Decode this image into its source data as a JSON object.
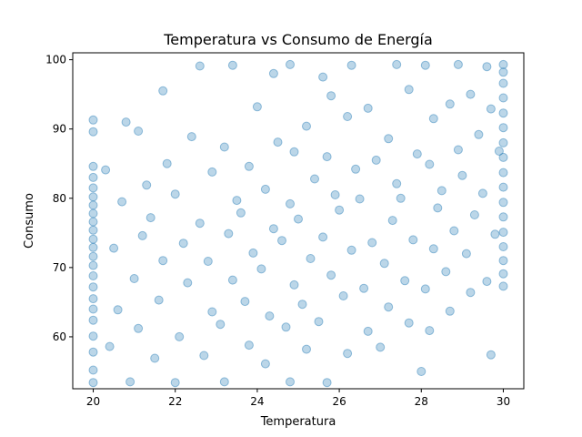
{
  "chart_data": {
    "type": "scatter",
    "title": "Temperatura vs Consumo de Energía",
    "xlabel": "Temperatura",
    "ylabel": "Consumo",
    "xlim": [
      19.5,
      30.5
    ],
    "ylim": [
      52.5,
      101
    ],
    "xticks": [
      20,
      22,
      24,
      26,
      28,
      30
    ],
    "yticks": [
      60,
      70,
      80,
      90,
      100
    ],
    "grid": false,
    "legend": "none",
    "series": [
      {
        "color": "#1f77b4",
        "points": [
          [
            20.0,
            53.4
          ],
          [
            20.0,
            55.2
          ],
          [
            20.0,
            57.8
          ],
          [
            20.0,
            60.1
          ],
          [
            20.0,
            62.4
          ],
          [
            20.0,
            64.0
          ],
          [
            20.0,
            65.5
          ],
          [
            20.0,
            67.2
          ],
          [
            20.0,
            68.8
          ],
          [
            20.0,
            70.3
          ],
          [
            20.0,
            71.6
          ],
          [
            20.0,
            72.9
          ],
          [
            20.0,
            74.1
          ],
          [
            20.0,
            75.4
          ],
          [
            20.0,
            76.6
          ],
          [
            20.0,
            77.8
          ],
          [
            20.0,
            79.0
          ],
          [
            20.0,
            80.2
          ],
          [
            20.0,
            81.5
          ],
          [
            20.0,
            83.0
          ],
          [
            20.0,
            84.6
          ],
          [
            20.0,
            89.6
          ],
          [
            20.0,
            91.3
          ],
          [
            20.4,
            58.6
          ],
          [
            20.6,
            63.9
          ],
          [
            20.5,
            72.8
          ],
          [
            20.7,
            79.5
          ],
          [
            20.3,
            84.1
          ],
          [
            20.8,
            91.0
          ],
          [
            20.9,
            53.5
          ],
          [
            21.1,
            61.2
          ],
          [
            21.0,
            68.4
          ],
          [
            21.2,
            74.6
          ],
          [
            21.3,
            81.9
          ],
          [
            21.1,
            89.7
          ],
          [
            21.5,
            56.9
          ],
          [
            21.6,
            65.3
          ],
          [
            21.7,
            71.0
          ],
          [
            21.4,
            77.2
          ],
          [
            21.8,
            85.0
          ],
          [
            21.7,
            95.5
          ],
          [
            22.0,
            53.4
          ],
          [
            22.1,
            60.0
          ],
          [
            22.3,
            67.8
          ],
          [
            22.2,
            73.5
          ],
          [
            22.0,
            80.6
          ],
          [
            22.4,
            88.9
          ],
          [
            22.6,
            99.1
          ],
          [
            22.7,
            57.3
          ],
          [
            22.9,
            63.6
          ],
          [
            22.8,
            70.9
          ],
          [
            22.6,
            76.4
          ],
          [
            22.9,
            83.8
          ],
          [
            23.2,
            53.5
          ],
          [
            23.1,
            61.8
          ],
          [
            23.4,
            68.2
          ],
          [
            23.3,
            74.9
          ],
          [
            23.5,
            79.7
          ],
          [
            23.2,
            87.4
          ],
          [
            23.4,
            99.2
          ],
          [
            23.8,
            58.8
          ],
          [
            23.7,
            65.1
          ],
          [
            23.9,
            72.1
          ],
          [
            23.6,
            77.9
          ],
          [
            23.8,
            84.6
          ],
          [
            24.0,
            93.2
          ],
          [
            24.2,
            56.1
          ],
          [
            24.3,
            63.0
          ],
          [
            24.1,
            69.8
          ],
          [
            24.4,
            75.6
          ],
          [
            24.2,
            81.3
          ],
          [
            24.5,
            88.1
          ],
          [
            24.4,
            98.0
          ],
          [
            24.8,
            53.5
          ],
          [
            24.7,
            61.4
          ],
          [
            24.9,
            67.5
          ],
          [
            24.6,
            73.9
          ],
          [
            24.8,
            79.2
          ],
          [
            24.9,
            86.7
          ],
          [
            24.8,
            99.3
          ],
          [
            25.2,
            58.2
          ],
          [
            25.1,
            64.7
          ],
          [
            25.3,
            71.3
          ],
          [
            25.0,
            77.0
          ],
          [
            25.4,
            82.8
          ],
          [
            25.2,
            90.4
          ],
          [
            25.6,
            97.5
          ],
          [
            25.7,
            53.4
          ],
          [
            25.5,
            62.2
          ],
          [
            25.8,
            68.9
          ],
          [
            25.6,
            74.4
          ],
          [
            25.9,
            80.5
          ],
          [
            25.7,
            86.0
          ],
          [
            25.8,
            94.8
          ],
          [
            26.2,
            57.6
          ],
          [
            26.1,
            65.9
          ],
          [
            26.3,
            72.5
          ],
          [
            26.0,
            78.3
          ],
          [
            26.4,
            84.2
          ],
          [
            26.2,
            91.8
          ],
          [
            26.3,
            99.2
          ],
          [
            26.7,
            60.8
          ],
          [
            26.6,
            67.0
          ],
          [
            26.8,
            73.6
          ],
          [
            26.5,
            79.9
          ],
          [
            26.9,
            85.5
          ],
          [
            26.7,
            93.0
          ],
          [
            27.0,
            58.5
          ],
          [
            27.2,
            64.3
          ],
          [
            27.1,
            70.6
          ],
          [
            27.3,
            76.8
          ],
          [
            27.4,
            82.1
          ],
          [
            27.2,
            88.6
          ],
          [
            27.4,
            99.3
          ],
          [
            27.7,
            62.0
          ],
          [
            27.6,
            68.1
          ],
          [
            27.8,
            74.0
          ],
          [
            27.5,
            80.0
          ],
          [
            27.9,
            86.4
          ],
          [
            27.7,
            95.7
          ],
          [
            28.0,
            55.0
          ],
          [
            28.2,
            60.9
          ],
          [
            28.1,
            66.9
          ],
          [
            28.3,
            72.7
          ],
          [
            28.4,
            78.6
          ],
          [
            28.2,
            84.9
          ],
          [
            28.3,
            91.5
          ],
          [
            28.1,
            99.2
          ],
          [
            28.7,
            63.7
          ],
          [
            28.6,
            69.4
          ],
          [
            28.8,
            75.3
          ],
          [
            28.5,
            81.1
          ],
          [
            28.9,
            87.0
          ],
          [
            28.7,
            93.6
          ],
          [
            28.9,
            99.3
          ],
          [
            29.2,
            66.4
          ],
          [
            29.1,
            72.0
          ],
          [
            29.3,
            77.6
          ],
          [
            29.0,
            83.3
          ],
          [
            29.4,
            89.2
          ],
          [
            29.2,
            95.0
          ],
          [
            29.7,
            57.4
          ],
          [
            29.6,
            68.0
          ],
          [
            29.8,
            74.8
          ],
          [
            29.5,
            80.7
          ],
          [
            29.9,
            86.8
          ],
          [
            29.7,
            92.9
          ],
          [
            29.6,
            99.0
          ],
          [
            30.0,
            67.3
          ],
          [
            30.0,
            69.1
          ],
          [
            30.0,
            71.0
          ],
          [
            30.0,
            73.0
          ],
          [
            30.0,
            75.1
          ],
          [
            30.0,
            77.3
          ],
          [
            30.0,
            79.4
          ],
          [
            30.0,
            81.6
          ],
          [
            30.0,
            83.7
          ],
          [
            30.0,
            85.9
          ],
          [
            30.0,
            88.0
          ],
          [
            30.0,
            90.2
          ],
          [
            30.0,
            92.3
          ],
          [
            30.0,
            94.5
          ],
          [
            30.0,
            96.6
          ],
          [
            30.0,
            98.2
          ],
          [
            30.0,
            99.3
          ]
        ]
      }
    ]
  }
}
